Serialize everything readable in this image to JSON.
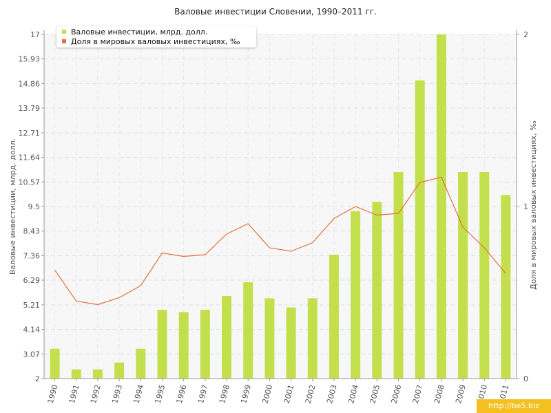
{
  "chart_data": {
    "type": "bar",
    "title": "Валовые инвестиции Словении, 1990–2011 гг.",
    "categories": [
      "1990",
      "1991",
      "1992",
      "1993",
      "1994",
      "1995",
      "1996",
      "1997",
      "1998",
      "1999",
      "2000",
      "2001",
      "2002",
      "2003",
      "2004",
      "2005",
      "2006",
      "2007",
      "2008",
      "2009",
      "2010",
      "2011"
    ],
    "series": [
      {
        "name": "Валовые инвестиции, млрд. долл.",
        "type": "bar",
        "axis": "left",
        "color": "#c3e04c",
        "values": [
          3.3,
          2.4,
          2.4,
          2.7,
          3.3,
          5.0,
          4.9,
          5.0,
          5.6,
          6.2,
          5.5,
          5.1,
          5.5,
          7.4,
          9.3,
          9.7,
          11.0,
          15.0,
          17.0,
          11.0,
          11.0,
          10.0
        ]
      },
      {
        "name": "Доля в мировых валовых инвестициях, ‰",
        "type": "line",
        "axis": "right",
        "color": "#e07040",
        "values": [
          0.63,
          0.45,
          0.43,
          0.47,
          0.54,
          0.73,
          0.71,
          0.72,
          0.84,
          0.9,
          0.76,
          0.74,
          0.79,
          0.93,
          1.0,
          0.95,
          0.96,
          1.14,
          1.17,
          0.88,
          0.76,
          0.61
        ]
      }
    ],
    "ylabel": "Валовые инвестиции, млрд. долл.",
    "ylabel_right": "Доля в мировых валовых инвестициях, ‰",
    "xlabel": "",
    "ylim": [
      2,
      17
    ],
    "ylim_right": [
      0,
      2
    ],
    "yticks": [
      "2",
      "3.07",
      "4.14",
      "5.21",
      "6.29",
      "7.36",
      "8.43",
      "9.5",
      "10.57",
      "11.64",
      "12.71",
      "13.79",
      "14.86",
      "15.93",
      "17"
    ],
    "yticks_right": [
      "0",
      "1",
      "2"
    ],
    "grid": true,
    "legend_position": "top-left"
  },
  "watermark": "http://be5.biz"
}
